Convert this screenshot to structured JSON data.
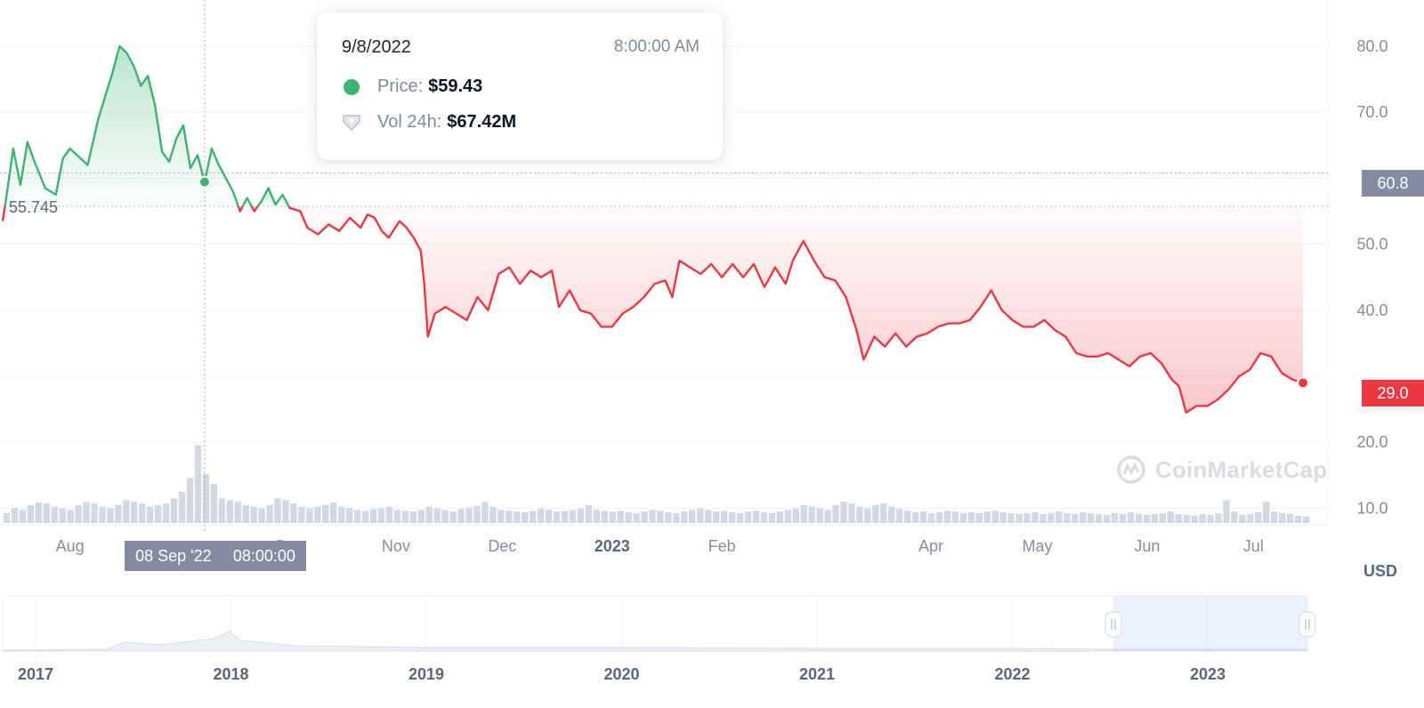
{
  "chart_data": {
    "type": "line",
    "currency_label": "USD",
    "watermark": "CoinMarketCap",
    "colors": {
      "up": "#3db371",
      "down": "#ea3943",
      "neutral": "#858ca2"
    },
    "reference_value": 55.745,
    "current_value": "29.0",
    "open_value": "60.8",
    "ylim": [
      7.5,
      87
    ],
    "y_ticks": [
      "80.0",
      "70.0",
      "50.0",
      "40.0",
      "20.0",
      "10.0"
    ],
    "y_tick_values": [
      80,
      70,
      50,
      40,
      20,
      10
    ],
    "x_ticks": [
      {
        "label": "Aug",
        "date": "2022-08-01",
        "bold": false
      },
      {
        "label": "Oct",
        "date": "2022-10-01",
        "bold": false
      },
      {
        "label": "Nov",
        "date": "2022-11-01",
        "bold": false
      },
      {
        "label": "Dec",
        "date": "2022-12-01",
        "bold": false
      },
      {
        "label": "2023",
        "date": "2023-01-01",
        "bold": true
      },
      {
        "label": "Feb",
        "date": "2023-02-01",
        "bold": false
      },
      {
        "label": "Apr",
        "date": "2023-04-01",
        "bold": false
      },
      {
        "label": "May",
        "date": "2023-05-01",
        "bold": false
      },
      {
        "label": "Jun",
        "date": "2023-06-01",
        "bold": false
      },
      {
        "label": "Jul",
        "date": "2023-07-01",
        "bold": false
      }
    ],
    "x_range": [
      "2022-07-13",
      "2023-07-17"
    ],
    "series": [
      {
        "points": [
          [
            "2022-07-13",
            53.5
          ],
          [
            "2022-07-14",
            57.0
          ],
          [
            "2022-07-16",
            64.5
          ],
          [
            "2022-07-18",
            59.0
          ],
          [
            "2022-07-20",
            65.5
          ],
          [
            "2022-07-22",
            62.5
          ],
          [
            "2022-07-25",
            58.5
          ],
          [
            "2022-07-28",
            57.5
          ],
          [
            "2022-07-30",
            63.0
          ],
          [
            "2022-08-01",
            64.5
          ],
          [
            "2022-08-04",
            63.0
          ],
          [
            "2022-08-06",
            62.0
          ],
          [
            "2022-08-09",
            69.0
          ],
          [
            "2022-08-11",
            72.5
          ],
          [
            "2022-08-13",
            76.0
          ],
          [
            "2022-08-15",
            80.0
          ],
          [
            "2022-08-17",
            79.0
          ],
          [
            "2022-08-19",
            77.0
          ],
          [
            "2022-08-21",
            74.0
          ],
          [
            "2022-08-23",
            75.5
          ],
          [
            "2022-08-25",
            71.0
          ],
          [
            "2022-08-27",
            64.0
          ],
          [
            "2022-08-29",
            62.5
          ],
          [
            "2022-08-31",
            66.0
          ],
          [
            "2022-09-02",
            68.0
          ],
          [
            "2022-09-04",
            61.5
          ],
          [
            "2022-09-06",
            63.5
          ],
          [
            "2022-09-08",
            59.43
          ],
          [
            "2022-09-10",
            64.5
          ],
          [
            "2022-09-12",
            62.0
          ],
          [
            "2022-09-14",
            60.0
          ],
          [
            "2022-09-16",
            58.0
          ],
          [
            "2022-09-18",
            55.0
          ],
          [
            "2022-09-20",
            57.0
          ],
          [
            "2022-09-22",
            55.0
          ],
          [
            "2022-09-24",
            56.5
          ],
          [
            "2022-09-26",
            58.5
          ],
          [
            "2022-09-28",
            56.0
          ],
          [
            "2022-09-30",
            57.5
          ],
          [
            "2022-10-02",
            55.5
          ],
          [
            "2022-10-05",
            55.0
          ],
          [
            "2022-10-07",
            52.5
          ],
          [
            "2022-10-10",
            51.5
          ],
          [
            "2022-10-13",
            53.0
          ],
          [
            "2022-10-16",
            52.0
          ],
          [
            "2022-10-19",
            54.0
          ],
          [
            "2022-10-22",
            52.5
          ],
          [
            "2022-10-24",
            54.5
          ],
          [
            "2022-10-26",
            54.0
          ],
          [
            "2022-10-28",
            52.0
          ],
          [
            "2022-10-30",
            51.0
          ],
          [
            "2022-11-02",
            53.5
          ],
          [
            "2022-11-04",
            52.5
          ],
          [
            "2022-11-06",
            51.0
          ],
          [
            "2022-11-08",
            49.0
          ],
          [
            "2022-11-09",
            44.0
          ],
          [
            "2022-11-10",
            36.0
          ],
          [
            "2022-11-12",
            39.5
          ],
          [
            "2022-11-15",
            40.5
          ],
          [
            "2022-11-18",
            39.5
          ],
          [
            "2022-11-21",
            38.5
          ],
          [
            "2022-11-24",
            42.0
          ],
          [
            "2022-11-27",
            40.0
          ],
          [
            "2022-11-30",
            45.5
          ],
          [
            "2022-12-03",
            46.5
          ],
          [
            "2022-12-06",
            44.0
          ],
          [
            "2022-12-09",
            46.0
          ],
          [
            "2022-12-12",
            45.0
          ],
          [
            "2022-12-15",
            46.0
          ],
          [
            "2022-12-17",
            40.5
          ],
          [
            "2022-12-20",
            43.0
          ],
          [
            "2022-12-23",
            40.0
          ],
          [
            "2022-12-26",
            39.5
          ],
          [
            "2022-12-29",
            37.5
          ],
          [
            "2023-01-01",
            37.5
          ],
          [
            "2023-01-04",
            39.5
          ],
          [
            "2023-01-07",
            40.5
          ],
          [
            "2023-01-10",
            42.0
          ],
          [
            "2023-01-13",
            44.0
          ],
          [
            "2023-01-16",
            44.5
          ],
          [
            "2023-01-18",
            42.0
          ],
          [
            "2023-01-20",
            47.5
          ],
          [
            "2023-01-23",
            46.5
          ],
          [
            "2023-01-26",
            45.5
          ],
          [
            "2023-01-29",
            47.0
          ],
          [
            "2023-02-01",
            45.0
          ],
          [
            "2023-02-04",
            47.0
          ],
          [
            "2023-02-07",
            45.0
          ],
          [
            "2023-02-10",
            47.0
          ],
          [
            "2023-02-13",
            43.5
          ],
          [
            "2023-02-16",
            46.5
          ],
          [
            "2023-02-19",
            44.0
          ],
          [
            "2023-02-21",
            47.5
          ],
          [
            "2023-02-24",
            50.5
          ],
          [
            "2023-02-27",
            47.5
          ],
          [
            "2023-03-02",
            45.0
          ],
          [
            "2023-03-05",
            44.5
          ],
          [
            "2023-03-08",
            42.0
          ],
          [
            "2023-03-11",
            37.0
          ],
          [
            "2023-03-13",
            32.5
          ],
          [
            "2023-03-16",
            36.0
          ],
          [
            "2023-03-19",
            34.5
          ],
          [
            "2023-03-22",
            36.5
          ],
          [
            "2023-03-25",
            34.5
          ],
          [
            "2023-03-28",
            36.0
          ],
          [
            "2023-03-31",
            36.5
          ],
          [
            "2023-04-03",
            37.5
          ],
          [
            "2023-04-06",
            38.0
          ],
          [
            "2023-04-09",
            38.0
          ],
          [
            "2023-04-12",
            38.5
          ],
          [
            "2023-04-15",
            40.5
          ],
          [
            "2023-04-18",
            43.0
          ],
          [
            "2023-04-21",
            40.0
          ],
          [
            "2023-04-24",
            38.5
          ],
          [
            "2023-04-27",
            37.5
          ],
          [
            "2023-04-30",
            37.5
          ],
          [
            "2023-05-03",
            38.5
          ],
          [
            "2023-05-06",
            37.0
          ],
          [
            "2023-05-09",
            36.0
          ],
          [
            "2023-05-12",
            33.5
          ],
          [
            "2023-05-15",
            33.0
          ],
          [
            "2023-05-18",
            33.0
          ],
          [
            "2023-05-21",
            33.5
          ],
          [
            "2023-05-24",
            32.5
          ],
          [
            "2023-05-27",
            31.5
          ],
          [
            "2023-05-30",
            33.0
          ],
          [
            "2023-06-02",
            33.5
          ],
          [
            "2023-06-05",
            32.0
          ],
          [
            "2023-06-08",
            29.5
          ],
          [
            "2023-06-10",
            28.5
          ],
          [
            "2023-06-12",
            24.5
          ],
          [
            "2023-06-15",
            25.5
          ],
          [
            "2023-06-18",
            25.5
          ],
          [
            "2023-06-21",
            26.5
          ],
          [
            "2023-06-24",
            28.0
          ],
          [
            "2023-06-27",
            30.0
          ],
          [
            "2023-06-30",
            31.0
          ],
          [
            "2023-07-03",
            33.5
          ],
          [
            "2023-07-06",
            33.0
          ],
          [
            "2023-07-09",
            30.5
          ],
          [
            "2023-07-12",
            29.5
          ],
          [
            "2023-07-15",
            29.0
          ]
        ]
      }
    ],
    "volume": [
      0.12,
      0.18,
      0.16,
      0.22,
      0.25,
      0.24,
      0.2,
      0.18,
      0.16,
      0.22,
      0.26,
      0.24,
      0.2,
      0.18,
      0.22,
      0.28,
      0.26,
      0.24,
      0.2,
      0.22,
      0.24,
      0.3,
      0.38,
      0.55,
      0.95,
      0.6,
      0.48,
      0.3,
      0.28,
      0.26,
      0.22,
      0.2,
      0.18,
      0.22,
      0.3,
      0.28,
      0.24,
      0.2,
      0.18,
      0.2,
      0.22,
      0.25,
      0.2,
      0.18,
      0.16,
      0.15,
      0.17,
      0.18,
      0.2,
      0.16,
      0.15,
      0.14,
      0.16,
      0.2,
      0.18,
      0.16,
      0.14,
      0.17,
      0.19,
      0.21,
      0.26,
      0.2,
      0.16,
      0.15,
      0.14,
      0.13,
      0.15,
      0.18,
      0.16,
      0.14,
      0.15,
      0.16,
      0.18,
      0.22,
      0.16,
      0.15,
      0.14,
      0.15,
      0.13,
      0.12,
      0.14,
      0.16,
      0.15,
      0.13,
      0.12,
      0.14,
      0.16,
      0.18,
      0.16,
      0.14,
      0.15,
      0.13,
      0.12,
      0.14,
      0.15,
      0.13,
      0.12,
      0.14,
      0.16,
      0.18,
      0.22,
      0.2,
      0.18,
      0.16,
      0.22,
      0.26,
      0.24,
      0.2,
      0.18,
      0.22,
      0.24,
      0.2,
      0.17,
      0.15,
      0.13,
      0.14,
      0.12,
      0.13,
      0.15,
      0.14,
      0.12,
      0.13,
      0.12,
      0.14,
      0.15,
      0.13,
      0.12,
      0.11,
      0.12,
      0.13,
      0.11,
      0.12,
      0.14,
      0.12,
      0.11,
      0.13,
      0.12,
      0.11,
      0.1,
      0.12,
      0.11,
      0.13,
      0.11,
      0.1,
      0.11,
      0.12,
      0.14,
      0.11,
      0.1,
      0.09,
      0.11,
      0.1,
      0.12,
      0.28,
      0.14,
      0.1,
      0.11,
      0.13,
      0.26,
      0.14,
      0.12,
      0.11,
      0.09,
      0.08
    ]
  },
  "tooltip": {
    "date": "9/8/2022",
    "time": "8:00:00 AM",
    "price_label": "Price:",
    "price_value": "$59.43",
    "vol_label": "Vol 24h:",
    "vol_value": "$67.42M"
  },
  "hover": {
    "date_label": "08 Sep '22",
    "time_label": "08:00:00",
    "date": "2022-09-08"
  },
  "navigator": {
    "year_labels": [
      "2017",
      "2018",
      "2019",
      "2020",
      "2021",
      "2022",
      "2023"
    ]
  }
}
